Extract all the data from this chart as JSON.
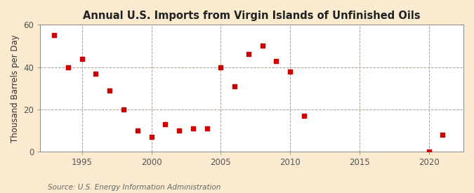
{
  "title": "Annual U.S. Imports from Virgin Islands of Unfinished Oils",
  "ylabel": "Thousand Barrels per Day",
  "source": "Source: U.S. Energy Information Administration",
  "years": [
    1993,
    1994,
    1995,
    1996,
    1997,
    1998,
    1999,
    2000,
    2001,
    2002,
    2003,
    2004,
    2005,
    2006,
    2007,
    2008,
    2009,
    2010,
    2011,
    2020,
    2021
  ],
  "values": [
    55,
    40,
    44,
    37,
    29,
    20,
    10,
    7,
    13,
    10,
    11,
    11,
    40,
    31,
    46,
    50,
    43,
    38,
    17,
    0,
    8
  ],
  "marker_color": "#cc0000",
  "marker_size": 25,
  "fig_bg_color": "#faebd0",
  "plot_bg_color": "#ffffff",
  "grid_color": "#b0a090",
  "grid_linestyle": "--",
  "grid_linewidth": 0.7,
  "ylim": [
    0,
    60
  ],
  "xlim": [
    1992,
    2022.5
  ],
  "yticks": [
    0,
    20,
    40,
    60
  ],
  "xticks": [
    1995,
    2000,
    2005,
    2010,
    2015,
    2020
  ],
  "title_fontsize": 10.5,
  "label_fontsize": 8.5,
  "tick_fontsize": 8.5,
  "source_fontsize": 7.5,
  "spine_color": "#888888",
  "tick_color": "#555555",
  "title_color": "#222222",
  "label_color": "#333333",
  "source_color": "#666666"
}
